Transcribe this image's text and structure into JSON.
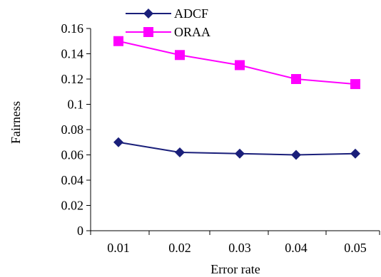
{
  "chart_data": {
    "type": "line",
    "xlabel": "Error rate",
    "ylabel": "Fairness",
    "x": [
      0.01,
      0.02,
      0.03,
      0.04,
      0.05
    ],
    "x_tick_labels": [
      "0.01",
      "0.02",
      "0.03",
      "0.04",
      "0.05"
    ],
    "y_ticks": [
      0,
      0.02,
      0.04,
      0.06,
      0.08,
      0.1,
      0.12,
      0.14,
      0.16
    ],
    "y_tick_labels": [
      "0",
      "0.02",
      "0.04",
      "0.06",
      "0.08",
      "0.1",
      "0.12",
      "0.14",
      "0.16"
    ],
    "ylim": [
      0,
      0.16
    ],
    "grid": false,
    "legend_position": "top",
    "series": [
      {
        "name": "ADCF",
        "values": [
          0.07,
          0.062,
          0.061,
          0.06,
          0.061
        ],
        "color": "#1a1f7a",
        "marker": "diamond"
      },
      {
        "name": "ORAA",
        "values": [
          0.15,
          0.139,
          0.131,
          0.12,
          0.116
        ],
        "color": "#ff00ff",
        "marker": "square"
      }
    ]
  }
}
